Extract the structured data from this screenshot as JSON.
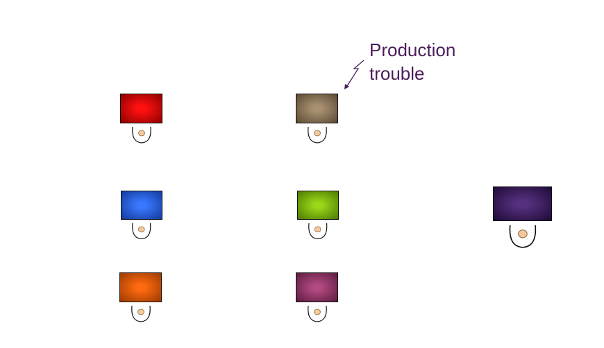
{
  "annotation": {
    "line1": "Production",
    "line2": "trouble",
    "color": "#4b1d5c"
  },
  "workstations": [
    {
      "id": "red",
      "screen_color": "#ff1010",
      "edge_color": "#8c0000"
    },
    {
      "id": "taupe",
      "screen_color": "#a89070",
      "edge_color": "#5a4a34"
    },
    {
      "id": "blue",
      "screen_color": "#3a78ff",
      "edge_color": "#123a9a"
    },
    {
      "id": "green",
      "screen_color": "#9ad61a",
      "edge_color": "#4c7a00"
    },
    {
      "id": "indigo",
      "screen_color": "#55307e",
      "edge_color": "#1e0a36"
    },
    {
      "id": "orange",
      "screen_color": "#ff6a10",
      "edge_color": "#9a3a00"
    },
    {
      "id": "plum",
      "screen_color": "#b04a80",
      "edge_color": "#5e1a40"
    }
  ],
  "person": {
    "head_color": "#f5c99a",
    "head_stroke": "#8a6a4a"
  }
}
